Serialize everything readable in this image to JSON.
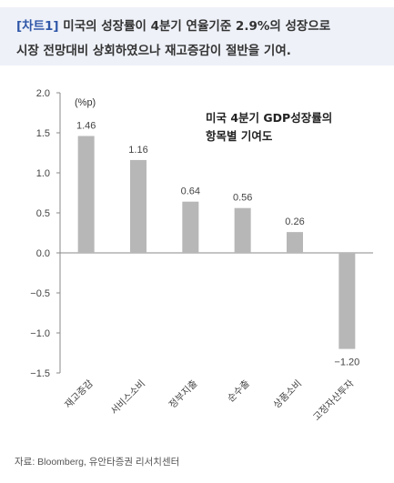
{
  "header": {
    "tag": "[차트1]",
    "title_line1": "미국의 성장률이 4분기 연율기준 2.9%의 성장으로",
    "title_line2": "시장 전망대비 상회하였으나 재고증감이 절반을 기여."
  },
  "chart_data": {
    "type": "bar",
    "title_lines": [
      "미국 4분기 GDP성장률의",
      "항목별 기여도"
    ],
    "unit": "(%p)",
    "categories": [
      "재고증감",
      "서비스소비",
      "정부지출",
      "순수출",
      "상품소비",
      "고정자산투자"
    ],
    "values": [
      1.46,
      1.16,
      0.64,
      0.56,
      0.26,
      -1.2
    ],
    "value_labels": [
      "1.46",
      "1.16",
      "0.64",
      "0.56",
      "0.26",
      "−1.20"
    ],
    "ylim": [
      -1.5,
      2.0
    ],
    "yticks": [
      "2.0",
      "1.5",
      "1.0",
      "0.5",
      "0.0",
      "−0.5",
      "−1.0",
      "−1.5"
    ],
    "ytick_values": [
      2.0,
      1.5,
      1.0,
      0.5,
      0.0,
      -0.5,
      -1.0,
      -1.5
    ],
    "bar_color": "#b7b7b7",
    "grid": false
  },
  "source": "자료: Bloomberg, 유안타증권 리서치센터"
}
